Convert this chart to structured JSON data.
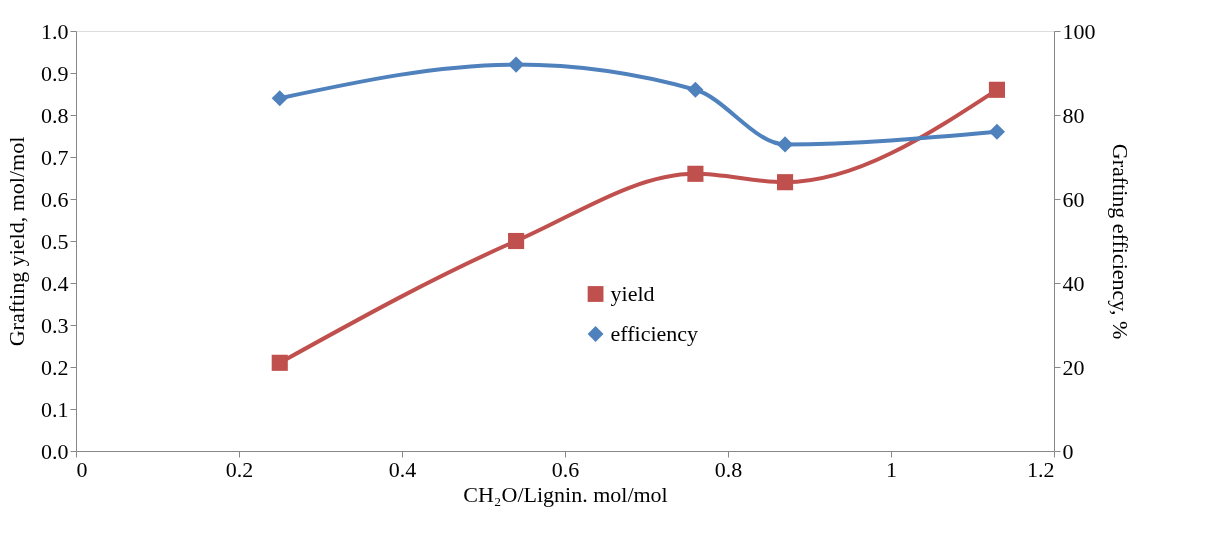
{
  "chart_data": {
    "type": "line",
    "xlabel": "CH₂O/Lignin. mol/mol",
    "ylabel": "Grafting yield, mol/mol",
    "y2label": "Grafting efficiency, %",
    "x": [
      0.25,
      0.54,
      0.76,
      0.87,
      1.13
    ],
    "series": [
      {
        "name": "yield",
        "color": "#c0504d",
        "marker": "square",
        "values": [
          0.21,
          0.5,
          0.66,
          0.64,
          0.86
        ]
      },
      {
        "name": "efficiency",
        "color": "#4f81bd",
        "marker": "diamond",
        "axis": "y2",
        "values": [
          84,
          92,
          86,
          73,
          76
        ]
      }
    ],
    "xlim": [
      0,
      1.2
    ],
    "xticks": [
      0,
      0.2,
      0.4,
      0.6,
      0.8,
      1,
      1.2
    ],
    "ylim": [
      0,
      1
    ],
    "yticks": [
      {
        "value": 0,
        "label": "0.0"
      },
      {
        "value": 0.1,
        "label": "0.1"
      },
      {
        "value": 0.2,
        "label": "0.2"
      },
      {
        "value": 0.3,
        "label": "0.3"
      },
      {
        "value": 0.4,
        "label": "0.4"
      },
      {
        "value": 0.5,
        "label": "0.5"
      },
      {
        "value": 0.6,
        "label": "0.6"
      },
      {
        "value": 0.7,
        "label": "0.7"
      },
      {
        "value": 0.8,
        "label": "0.8"
      },
      {
        "value": 0.9,
        "label": "0.9"
      },
      {
        "value": 1,
        "label": "1.0"
      }
    ],
    "y2lim": [
      0,
      100
    ],
    "y2ticks": [
      0,
      20,
      40,
      60,
      80,
      100
    ],
    "legend": "center",
    "grid": false
  }
}
